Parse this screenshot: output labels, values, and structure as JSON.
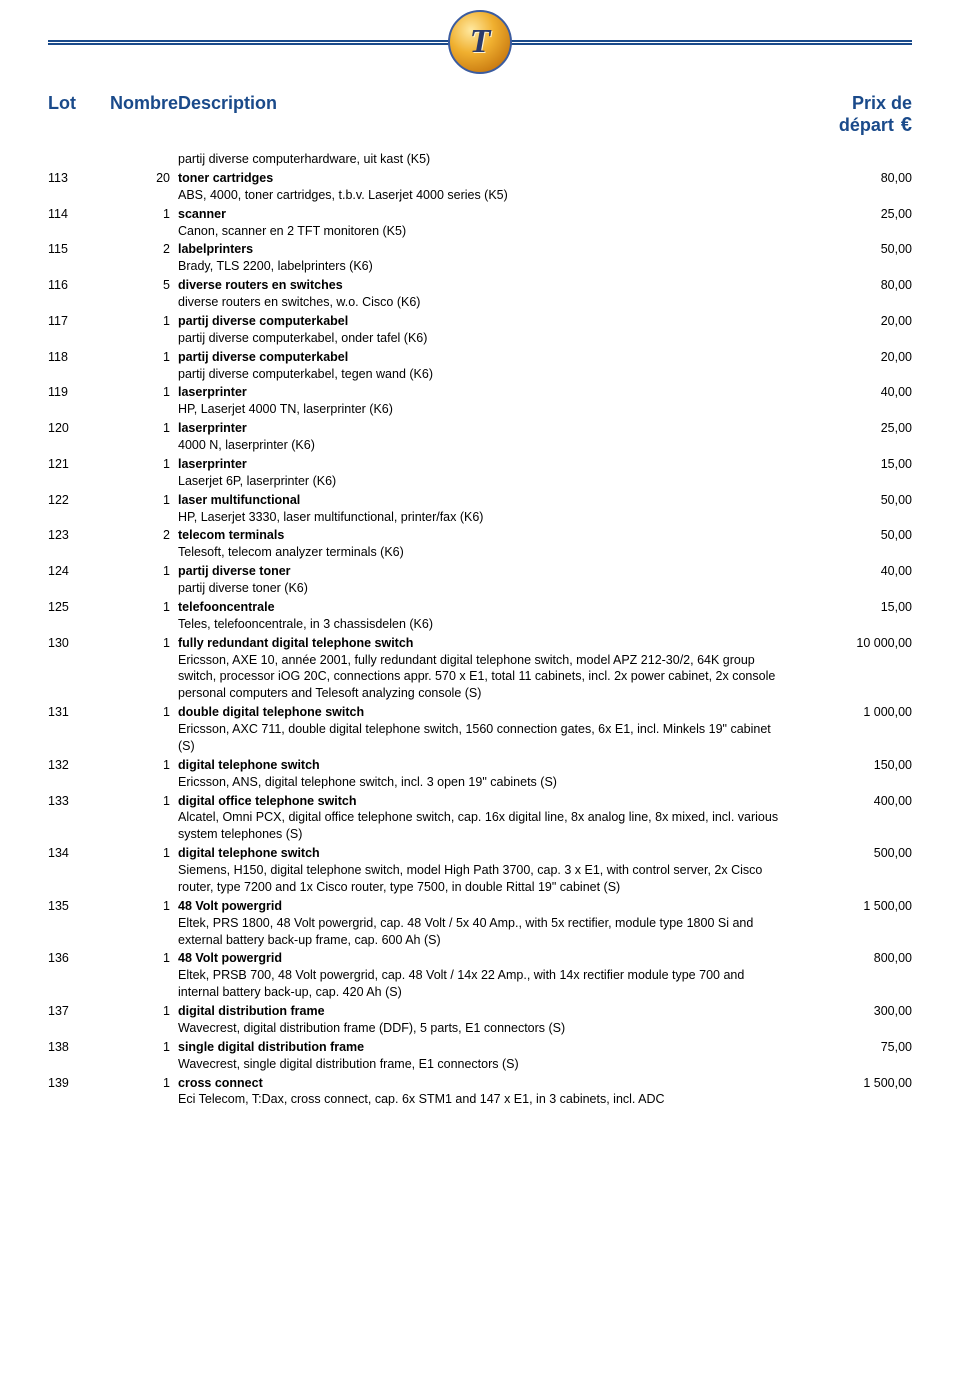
{
  "header": {
    "lot": "Lot",
    "nombre": "Nombre",
    "description": "Description",
    "prix": "Prix de départ",
    "currency": "€"
  },
  "pre_subtitle": "partij diverse computerhardware, uit kast (K5)",
  "rows": [
    {
      "lot": "113",
      "num": "20",
      "title": "toner cartridges",
      "sub": "ABS, 4000, toner cartridges, t.b.v. Laserjet 4000 series (K5)",
      "price": "80,00"
    },
    {
      "lot": "114",
      "num": "1",
      "title": "scanner",
      "sub": "Canon, scanner en 2 TFT monitoren (K5)",
      "price": "25,00"
    },
    {
      "lot": "115",
      "num": "2",
      "title": "labelprinters",
      "sub": "Brady, TLS 2200, labelprinters (K6)",
      "price": "50,00"
    },
    {
      "lot": "116",
      "num": "5",
      "title": "diverse routers en switches",
      "sub": "diverse routers en switches, w.o. Cisco (K6)",
      "price": "80,00"
    },
    {
      "lot": "117",
      "num": "1",
      "title": "partij diverse computerkabel",
      "sub": "partij diverse computerkabel, onder tafel (K6)",
      "price": "20,00"
    },
    {
      "lot": "118",
      "num": "1",
      "title": "partij diverse computerkabel",
      "sub": "partij diverse computerkabel, tegen wand (K6)",
      "price": "20,00"
    },
    {
      "lot": "119",
      "num": "1",
      "title": "laserprinter",
      "sub": "HP, Laserjet 4000 TN, laserprinter (K6)",
      "price": "40,00"
    },
    {
      "lot": "120",
      "num": "1",
      "title": "laserprinter",
      "sub": "4000 N, laserprinter (K6)",
      "price": "25,00"
    },
    {
      "lot": "121",
      "num": "1",
      "title": "laserprinter",
      "sub": "Laserjet 6P, laserprinter (K6)",
      "price": "15,00"
    },
    {
      "lot": "122",
      "num": "1",
      "title": "laser multifunctional",
      "sub": "HP, Laserjet 3330, laser multifunctional, printer/fax (K6)",
      "price": "50,00"
    },
    {
      "lot": "123",
      "num": "2",
      "title": "telecom terminals",
      "sub": "Telesoft, telecom analyzer terminals (K6)",
      "price": "50,00"
    },
    {
      "lot": "124",
      "num": "1",
      "title": "partij diverse toner",
      "sub": "partij diverse toner (K6)",
      "price": "40,00"
    },
    {
      "lot": "125",
      "num": "1",
      "title": "telefooncentrale",
      "sub": "Teles, telefooncentrale, in 3 chassisdelen (K6)",
      "price": "15,00"
    },
    {
      "lot": "130",
      "num": "1",
      "title": "fully redundant digital telephone switch",
      "sub": "Ericsson, AXE 10, année 2001, fully redundant digital telephone switch, model APZ 212-30/2, 64K group switch, processor iOG 20C, connections appr. 570 x E1, total 11 cabinets, incl. 2x power cabinet, 2x console personal computers and Telesoft analyzing console (S)",
      "price": "10 000,00"
    },
    {
      "lot": "131",
      "num": "1",
      "title": "double digital telephone switch",
      "sub": "Ericsson, AXC 711, double digital telephone switch, 1560 connection gates, 6x E1, incl. Minkels 19\" cabinet (S)",
      "price": "1 000,00"
    },
    {
      "lot": "132",
      "num": "1",
      "title": "digital telephone switch",
      "sub": "Ericsson, ANS, digital telephone switch, incl. 3 open 19\" cabinets (S)",
      "price": "150,00"
    },
    {
      "lot": "133",
      "num": "1",
      "title": "digital office telephone switch",
      "sub": "Alcatel, Omni PCX, digital office telephone switch, cap. 16x digital line, 8x analog line, 8x mixed, incl. various system telephones (S)",
      "price": "400,00"
    },
    {
      "lot": "134",
      "num": "1",
      "title": "digital telephone switch",
      "sub": "Siemens, H150, digital telephone switch, model High Path 3700, cap. 3 x E1, with control server, 2x Cisco router, type 7200 and 1x Cisco router, type 7500, in double Rittal 19\" cabinet (S)",
      "price": "500,00"
    },
    {
      "lot": "135",
      "num": "1",
      "title": "48 Volt powergrid",
      "sub": "Eltek, PRS 1800, 48 Volt powergrid, cap. 48 Volt / 5x 40 Amp., with 5x rectifier, module type 1800 Si and external battery back-up frame, cap. 600 Ah (S)",
      "price": "1 500,00"
    },
    {
      "lot": "136",
      "num": "1",
      "title": "48 Volt powergrid",
      "sub": "Eltek, PRSB 700, 48 Volt powergrid, cap. 48 Volt / 14x 22 Amp., with 14x rectifier module type 700 and internal battery back-up, cap. 420 Ah (S)",
      "price": "800,00"
    },
    {
      "lot": "137",
      "num": "1",
      "title": "digital distribution frame",
      "sub": "Wavecrest, digital distribution frame (DDF), 5 parts, E1 connectors (S)",
      "price": "300,00"
    },
    {
      "lot": "138",
      "num": "1",
      "title": "single digital distribution frame",
      "sub": "Wavecrest, single digital distribution frame, E1 connectors (S)",
      "price": "75,00"
    },
    {
      "lot": "139",
      "num": "1",
      "title": "cross connect",
      "sub": "Eci Telecom, T:Dax, cross connect, cap. 6x STM1 and 147 x E1, in 3 cabinets, incl. ADC",
      "price": "1 500,00"
    }
  ]
}
